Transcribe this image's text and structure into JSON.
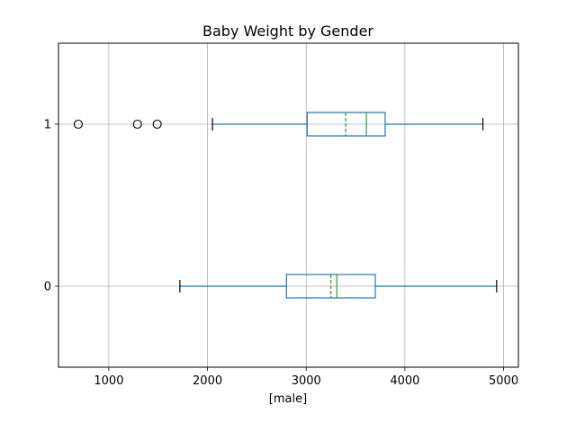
{
  "chart_data": {
    "type": "boxplot",
    "orientation": "horizontal",
    "title": "Baby Weight by Gender",
    "xlabel": "[male]",
    "ylabel": "",
    "xlim": [
      490,
      5150
    ],
    "ylim": [
      -0.5,
      1.5
    ],
    "x_ticks": [
      1000,
      2000,
      3000,
      4000,
      5000
    ],
    "y_ticks": [
      0,
      1
    ],
    "grid": true,
    "legend": "none",
    "colors": {
      "box": "#1f77b4",
      "median": "#2ca02c",
      "mean": "#2ca02c",
      "whisker_cap": "#000000",
      "grid": "#b0b0b0"
    },
    "groups": [
      {
        "label": "0",
        "position": 0,
        "whisker_low": 1720,
        "q1": 2800,
        "median": 3310,
        "mean": 3250,
        "q3": 3700,
        "whisker_high": 4930,
        "outliers": []
      },
      {
        "label": "1",
        "position": 1,
        "whisker_low": 2050,
        "q1": 3010,
        "median": 3610,
        "mean": 3400,
        "q3": 3800,
        "whisker_high": 4790,
        "outliers": [
          690,
          1290,
          1490
        ]
      }
    ]
  }
}
